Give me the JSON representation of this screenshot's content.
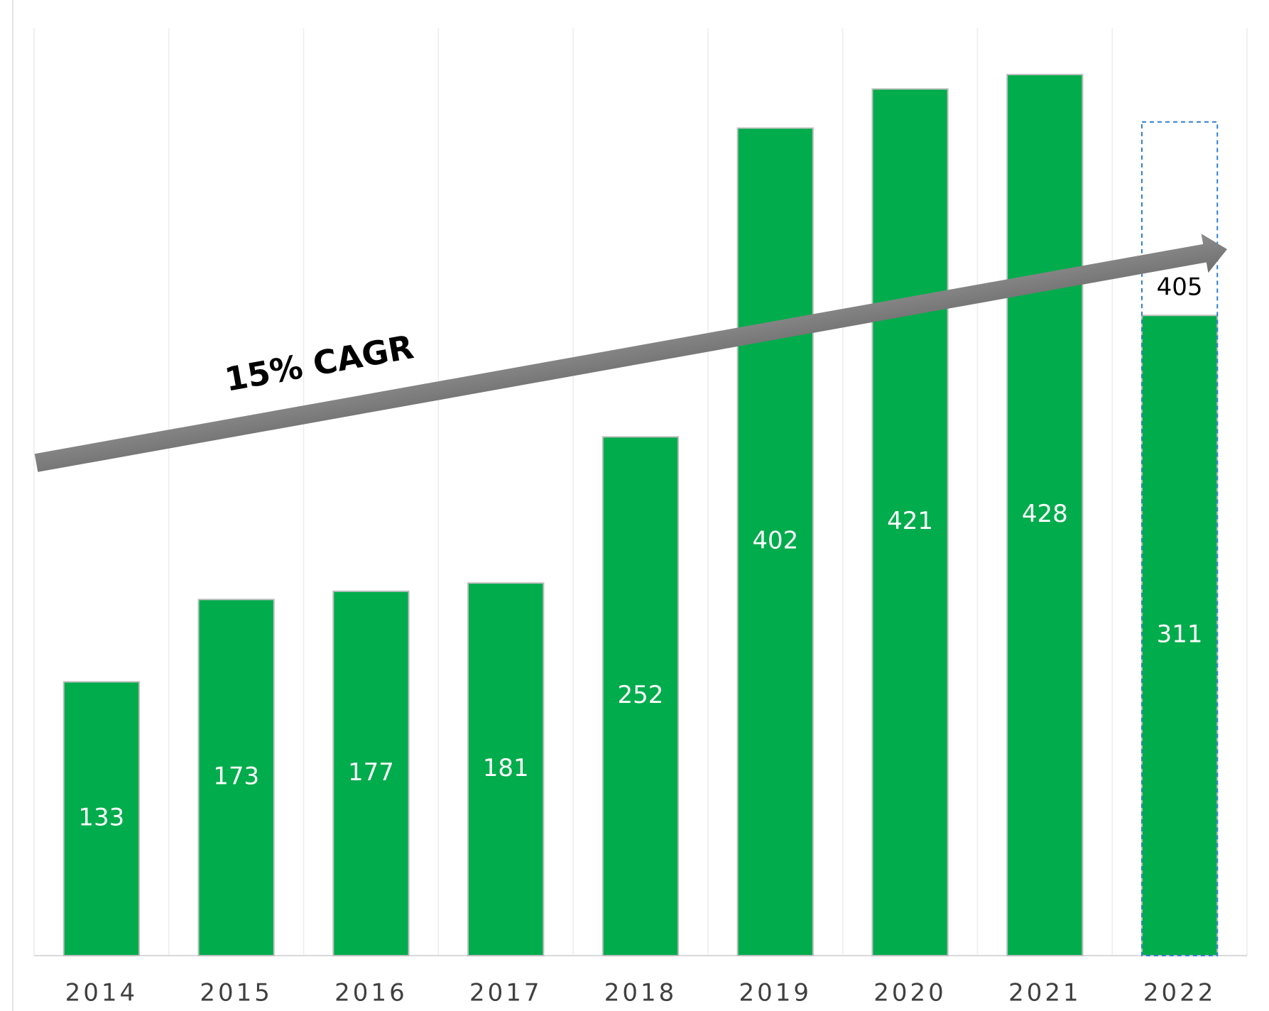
{
  "chart_data": {
    "type": "bar",
    "categories": [
      "2014",
      "2015",
      "2016",
      "2017",
      "2018",
      "2019",
      "2020",
      "2021",
      "2022"
    ],
    "values": [
      133,
      173,
      177,
      181,
      252,
      402,
      421,
      428,
      311
    ],
    "projected_values": [
      null,
      null,
      null,
      null,
      null,
      null,
      null,
      null,
      405
    ],
    "color": "#00ac4b",
    "projected_color": "#2f7fd0",
    "annotation": "15% CAGR",
    "grid": true
  }
}
